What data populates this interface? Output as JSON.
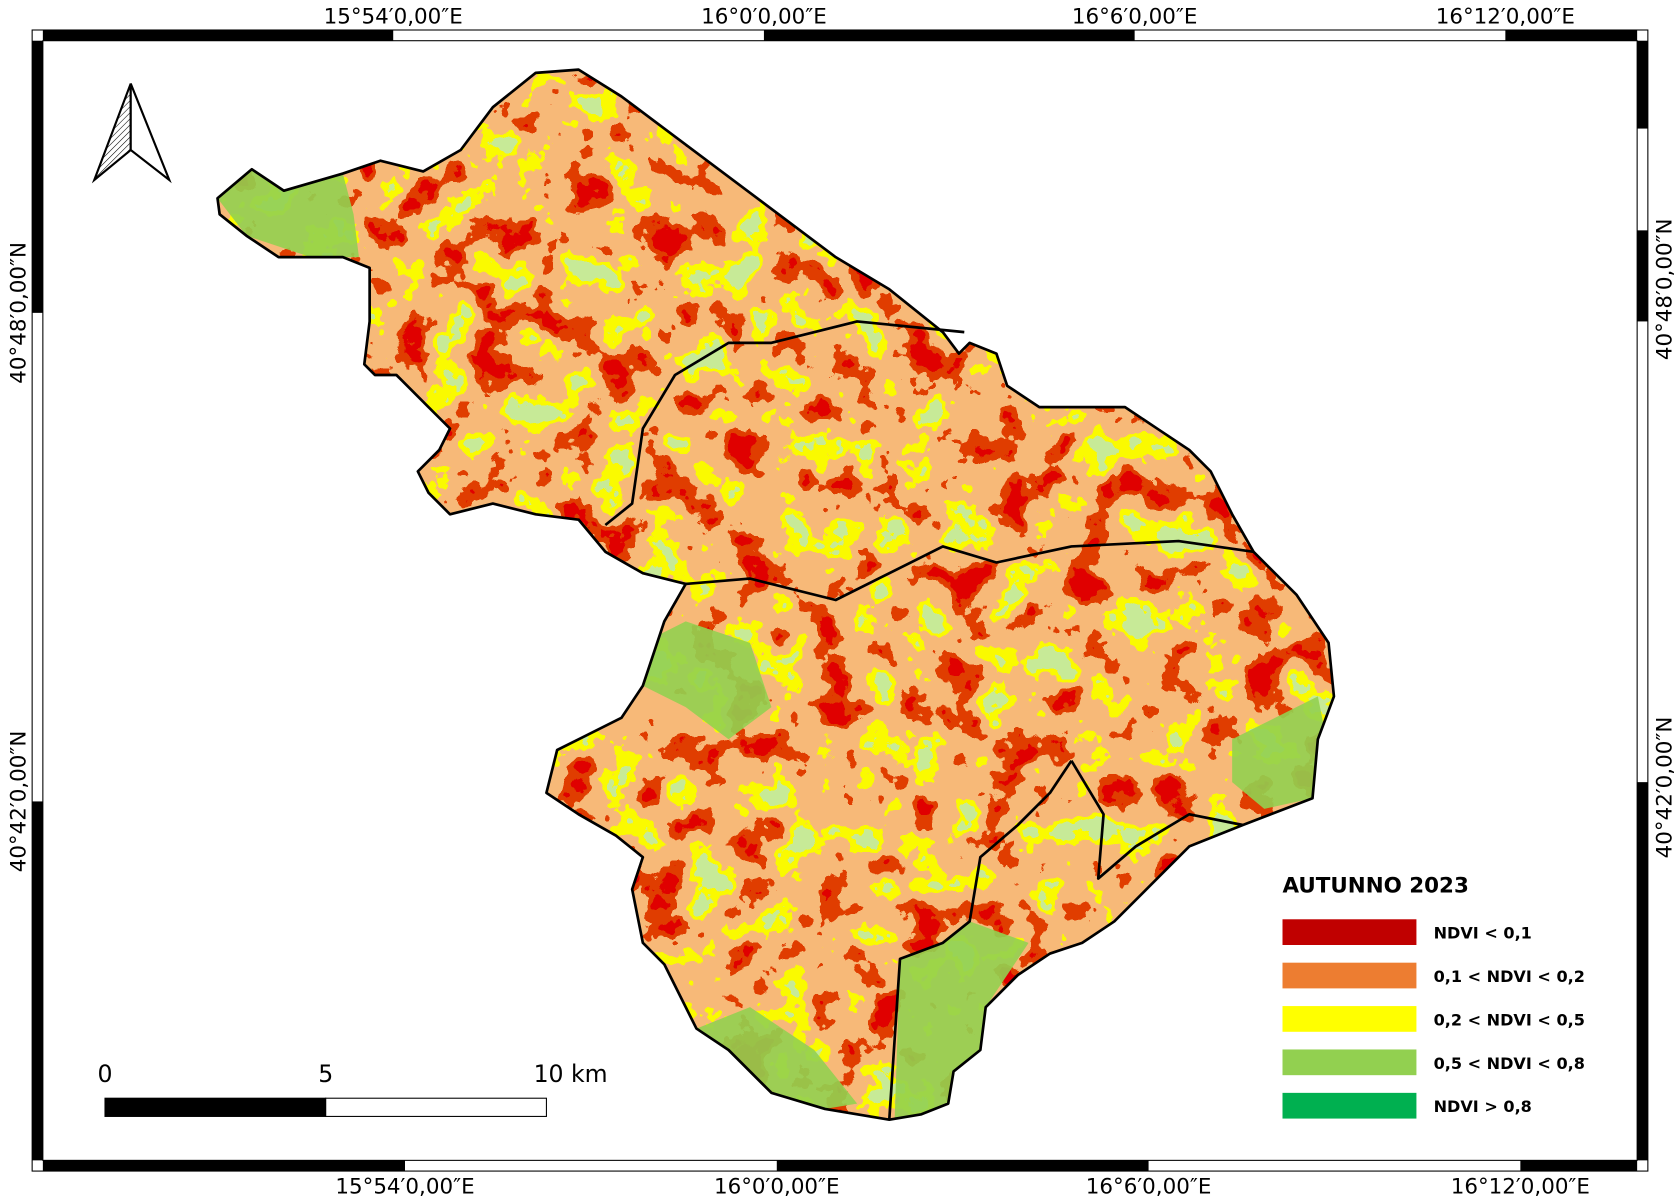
{
  "map": {
    "coordinates": {
      "top": [
        "15°54′0,00″E",
        "16°0′0,00″E",
        "16°6′0,00″E",
        "16°12′0,00″E"
      ],
      "bottom": [
        "15°54′0,00″E",
        "16°0′0,00″E",
        "16°6′0,00″E",
        "16°12′0,00″E"
      ],
      "left": [
        "40°48′0,00″N",
        "40°42′0,00″N"
      ],
      "right": [
        "40°48′0,00″N",
        "40°42′0,00″N"
      ]
    },
    "scale_bar": {
      "labels": [
        "0",
        "5",
        "10 km"
      ]
    },
    "legend": {
      "title": "AUTUNNO 2023",
      "items": [
        {
          "label": "NDVI < 0,1",
          "color": "#c00000"
        },
        {
          "label": "0,1 < NDVI < 0,2",
          "color": "#ed7d31"
        },
        {
          "label": "0,2 < NDVI < 0,5",
          "color": "#ffff00"
        },
        {
          "label": "0,5 < NDVI < 0,8",
          "color": "#92d050"
        },
        {
          "label": "NDVI > 0,8",
          "color": "#00b050"
        }
      ]
    }
  }
}
